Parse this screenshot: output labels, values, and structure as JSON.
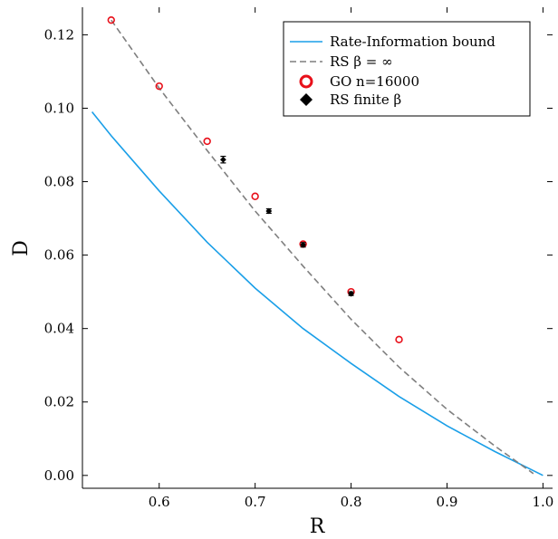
{
  "chart_data": {
    "type": "line",
    "title": "",
    "xlabel": "R",
    "ylabel": "D",
    "xlim": [
      0.52,
      1.01
    ],
    "ylim": [
      -0.0035,
      0.1275
    ],
    "xticks": [
      0.6,
      0.7,
      0.8,
      0.9,
      1.0
    ],
    "xtick_labels": [
      "0.6",
      "0.7",
      "0.8",
      "0.9",
      "1.0"
    ],
    "yticks": [
      0.0,
      0.02,
      0.04,
      0.06,
      0.08,
      0.1,
      0.12
    ],
    "ytick_labels": [
      "0.00",
      "0.02",
      "0.04",
      "0.06",
      "0.08",
      "0.10",
      "0.12"
    ],
    "grid": false,
    "legend_position": "top-right",
    "series": [
      {
        "name": "Rate-Information bound",
        "kind": "line",
        "color": "#1a9fe8",
        "style": "solid",
        "x": [
          0.53,
          0.55,
          0.6,
          0.65,
          0.7,
          0.75,
          0.8,
          0.85,
          0.9,
          0.95,
          1.0
        ],
        "y": [
          0.099,
          0.0925,
          0.0775,
          0.0635,
          0.051,
          0.04,
          0.0305,
          0.0215,
          0.0135,
          0.0065,
          0.0
        ]
      },
      {
        "name": "RS β = ∞",
        "kind": "line",
        "color": "#7f7f7f",
        "style": "dashed",
        "x": [
          0.55,
          0.6,
          0.65,
          0.7,
          0.75,
          0.8,
          0.85,
          0.9,
          0.95,
          0.99
        ],
        "y": [
          0.124,
          0.1055,
          0.0885,
          0.072,
          0.057,
          0.0425,
          0.0295,
          0.018,
          0.008,
          0.0005
        ]
      },
      {
        "name": "GO n=16000",
        "kind": "scatter",
        "marker": "circle-open",
        "color": "#e8101a",
        "x": [
          0.55,
          0.6,
          0.65,
          0.7,
          0.75,
          0.8,
          0.85
        ],
        "y": [
          0.124,
          0.106,
          0.091,
          0.076,
          0.063,
          0.05,
          0.037
        ]
      },
      {
        "name": "RS finite β",
        "kind": "scatter",
        "marker": "diamond",
        "color": "#000000",
        "x": [
          0.6667,
          0.7143,
          0.75,
          0.8
        ],
        "y": [
          0.086,
          0.072,
          0.0628,
          0.0495
        ],
        "error": [
          0.0009,
          0.0006,
          0.0006,
          0.0005
        ]
      }
    ]
  }
}
